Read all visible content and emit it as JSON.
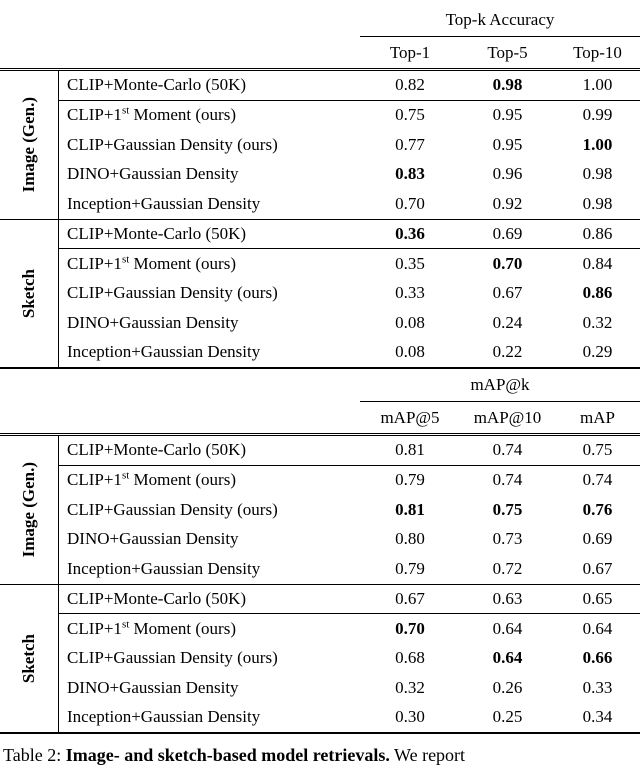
{
  "caption": {
    "prefix": "Table 2: ",
    "bold_text": "Image- and sketch-based model retrievals.",
    "suffix": " We report"
  },
  "tables": [
    {
      "span_header": "Top-k Accuracy",
      "columns": [
        "Top-1",
        "Top-5",
        "Top-10"
      ],
      "sections": [
        {
          "label": "Image (Gen.)",
          "rows": [
            {
              "method_parts": [
                "CLIP+Monte-Carlo (50K)",
                "",
                ""
              ],
              "values": [
                "0.82",
                "0.98",
                "1.00"
              ],
              "bold": [
                false,
                true,
                false
              ]
            },
            {
              "method_parts": [
                "CLIP+1",
                "st",
                " Moment (ours)"
              ],
              "values": [
                "0.75",
                "0.95",
                "0.99"
              ],
              "bold": [
                false,
                false,
                false
              ]
            },
            {
              "method_parts": [
                "CLIP+Gaussian Density (ours)",
                "",
                ""
              ],
              "values": [
                "0.77",
                "0.95",
                "1.00"
              ],
              "bold": [
                false,
                false,
                true
              ]
            },
            {
              "method_parts": [
                "DINO+Gaussian Density",
                "",
                ""
              ],
              "values": [
                "0.83",
                "0.96",
                "0.98"
              ],
              "bold": [
                true,
                false,
                false
              ]
            },
            {
              "method_parts": [
                "Inception+Gaussian Density",
                "",
                ""
              ],
              "values": [
                "0.70",
                "0.92",
                "0.98"
              ],
              "bold": [
                false,
                false,
                false
              ]
            }
          ]
        },
        {
          "label": "Sketch",
          "rows": [
            {
              "method_parts": [
                "CLIP+Monte-Carlo (50K)",
                "",
                ""
              ],
              "values": [
                "0.36",
                "0.69",
                "0.86"
              ],
              "bold": [
                true,
                false,
                false
              ]
            },
            {
              "method_parts": [
                "CLIP+1",
                "st",
                " Moment (ours)"
              ],
              "values": [
                "0.35",
                "0.70",
                "0.84"
              ],
              "bold": [
                false,
                true,
                false
              ]
            },
            {
              "method_parts": [
                "CLIP+Gaussian Density (ours)",
                "",
                ""
              ],
              "values": [
                "0.33",
                "0.67",
                "0.86"
              ],
              "bold": [
                false,
                false,
                true
              ]
            },
            {
              "method_parts": [
                "DINO+Gaussian Density",
                "",
                ""
              ],
              "values": [
                "0.08",
                "0.24",
                "0.32"
              ],
              "bold": [
                false,
                false,
                false
              ]
            },
            {
              "method_parts": [
                "Inception+Gaussian Density",
                "",
                ""
              ],
              "values": [
                "0.08",
                "0.22",
                "0.29"
              ],
              "bold": [
                false,
                false,
                false
              ]
            }
          ]
        }
      ]
    },
    {
      "span_header": "mAP@k",
      "columns": [
        "mAP@5",
        "mAP@10",
        "mAP"
      ],
      "sections": [
        {
          "label": "Image (Gen.)",
          "rows": [
            {
              "method_parts": [
                "CLIP+Monte-Carlo (50K)",
                "",
                ""
              ],
              "values": [
                "0.81",
                "0.74",
                "0.75"
              ],
              "bold": [
                false,
                false,
                false
              ]
            },
            {
              "method_parts": [
                "CLIP+1",
                "st",
                " Moment (ours)"
              ],
              "values": [
                "0.79",
                "0.74",
                "0.74"
              ],
              "bold": [
                false,
                false,
                false
              ]
            },
            {
              "method_parts": [
                "CLIP+Gaussian Density (ours)",
                "",
                ""
              ],
              "values": [
                "0.81",
                "0.75",
                "0.76"
              ],
              "bold": [
                true,
                true,
                true
              ]
            },
            {
              "method_parts": [
                "DINO+Gaussian Density",
                "",
                ""
              ],
              "values": [
                "0.80",
                "0.73",
                "0.69"
              ],
              "bold": [
                false,
                false,
                false
              ]
            },
            {
              "method_parts": [
                "Inception+Gaussian Density",
                "",
                ""
              ],
              "values": [
                "0.79",
                "0.72",
                "0.67"
              ],
              "bold": [
                false,
                false,
                false
              ]
            }
          ]
        },
        {
          "label": "Sketch",
          "rows": [
            {
              "method_parts": [
                "CLIP+Monte-Carlo (50K)",
                "",
                ""
              ],
              "values": [
                "0.67",
                "0.63",
                "0.65"
              ],
              "bold": [
                false,
                false,
                false
              ]
            },
            {
              "method_parts": [
                "CLIP+1",
                "st",
                " Moment (ours)"
              ],
              "values": [
                "0.70",
                "0.64",
                "0.64"
              ],
              "bold": [
                true,
                false,
                false
              ]
            },
            {
              "method_parts": [
                "CLIP+Gaussian Density (ours)",
                "",
                ""
              ],
              "values": [
                "0.68",
                "0.64",
                "0.66"
              ],
              "bold": [
                false,
                true,
                true
              ]
            },
            {
              "method_parts": [
                "DINO+Gaussian Density",
                "",
                ""
              ],
              "values": [
                "0.32",
                "0.26",
                "0.33"
              ],
              "bold": [
                false,
                false,
                false
              ]
            },
            {
              "method_parts": [
                "Inception+Gaussian Density",
                "",
                ""
              ],
              "values": [
                "0.30",
                "0.25",
                "0.34"
              ],
              "bold": [
                false,
                false,
                false
              ]
            }
          ]
        }
      ]
    }
  ]
}
